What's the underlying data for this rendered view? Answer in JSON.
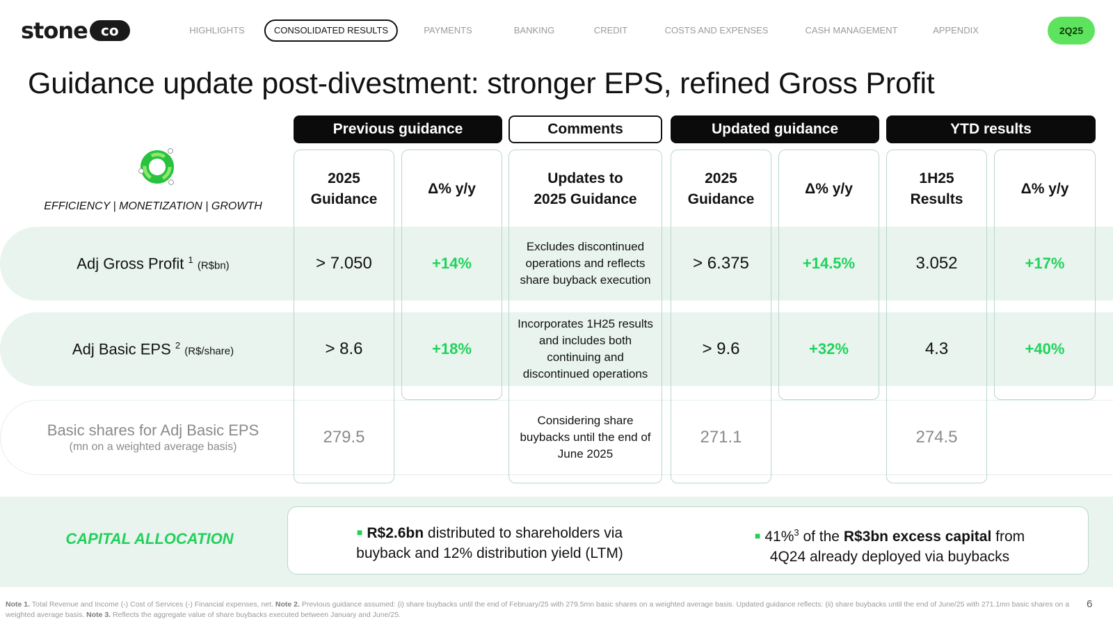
{
  "brand": {
    "name": "stone",
    "suffix": "co",
    "accent_color": "#5ee35e",
    "positive_color": "#1fd35a"
  },
  "nav": {
    "items": [
      "HIGHLIGHTS",
      "CONSOLIDATED RESULTS",
      "PAYMENTS",
      "BANKING",
      "CREDIT",
      "COSTS AND EXPENSES",
      "CASH MANAGEMENT",
      "APPENDIX"
    ],
    "active": "CONSOLIDATED RESULTS",
    "period_badge": "2Q25"
  },
  "title": "Guidance update post-divestment: stronger EPS, refined Gross Profit",
  "tagline": "EFFICIENCY | MONETIZATION | GROWTH",
  "emblem_icon": "green-ring-logo-icon",
  "column_groups": [
    "Previous guidance",
    "Comments",
    "Updated guidance",
    "YTD results"
  ],
  "subheaders": {
    "prev_guidance": [
      "2025",
      "Guidance"
    ],
    "prev_delta": "Δ% y/y",
    "comments": [
      "Updates to",
      "2025 Guidance"
    ],
    "upd_guidance": [
      "2025",
      "Guidance"
    ],
    "upd_delta": "Δ% y/y",
    "ytd_results": [
      "1H25",
      "Results"
    ],
    "ytd_delta": "Δ% y/y"
  },
  "rows": [
    {
      "label": "Adj Gross Profit",
      "note": "1",
      "unit": "(R$bn)",
      "prev_guidance": "> 7.050",
      "prev_delta": "+14%",
      "comment": "Excludes discontinued operations and reflects share buyback execution",
      "upd_guidance": "> 6.375",
      "upd_delta": "+14.5%",
      "ytd_results": "3.052",
      "ytd_delta": "+17%"
    },
    {
      "label": "Adj Basic EPS",
      "note": "2",
      "unit": "(R$/share)",
      "prev_guidance": "> 8.6",
      "prev_delta": "+18%",
      "comment": "Incorporates 1H25 results and includes both continuing and discontinued operations",
      "upd_guidance": "> 9.6",
      "upd_delta": "+32%",
      "ytd_results": "4.3",
      "ytd_delta": "+40%"
    },
    {
      "label": "Basic shares for Adj Basic EPS",
      "sublabel": "(mn on a weighted average basis)",
      "prev_guidance": "279.5",
      "comment": "Considering share buybacks until the end of June 2025",
      "upd_guidance": "271.1",
      "ytd_results": "274.5"
    }
  ],
  "capital_allocation": {
    "label": "CAPITAL ALLOCATION",
    "bullet1": {
      "bold": "R$2.6bn",
      "text1": " distributed to shareholders via",
      "text2": "buyback and 12% distribution yield (LTM)"
    },
    "bullet2": {
      "pre": "41%",
      "note": "3",
      "mid": " of the ",
      "bold": "R$3bn excess capital",
      "post": " from",
      "text2": "4Q24 already deployed via buybacks"
    }
  },
  "footnotes": {
    "n1_label": "Note 1.",
    "n1_text": " Total Revenue and Income (-) Cost of Services (-) Financial expenses, net. ",
    "n2_label": "Note 2.",
    "n2_text": " Previous guidance assumed: (i) share buybacks until the end of February/25 with 279.5mn basic shares on a weighted average basis. Updated guidance reflects: (ii) share buybacks until the end of June/25 with 271.1mn basic shares on a weighted average basis. ",
    "n3_label": "Note 3.",
    "n3_text": " Reflects the aggregate value of share buybacks executed between January and June/25."
  },
  "page_number": "6"
}
